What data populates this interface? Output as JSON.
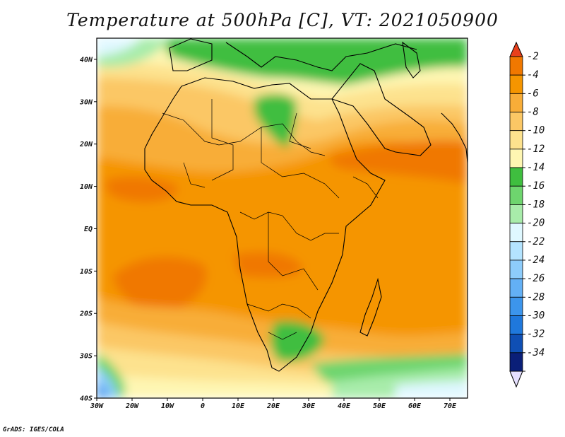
{
  "title": "Temperature at 500hPa [C], VT: 2021050900",
  "credit": "GrADS: IGES/COLA",
  "map": {
    "lon_range": [
      -30,
      75
    ],
    "lat_range": [
      -40,
      45
    ],
    "lat_ticks": [
      {
        "value": 40,
        "label": "40N"
      },
      {
        "value": 30,
        "label": "30N"
      },
      {
        "value": 20,
        "label": "20N"
      },
      {
        "value": 10,
        "label": "10N"
      },
      {
        "value": 0,
        "label": "EQ"
      },
      {
        "value": -10,
        "label": "10S"
      },
      {
        "value": -20,
        "label": "20S"
      },
      {
        "value": -30,
        "label": "30S"
      },
      {
        "value": -40,
        "label": "40S"
      }
    ],
    "lon_ticks": [
      {
        "value": -30,
        "label": "30W"
      },
      {
        "value": -20,
        "label": "20W"
      },
      {
        "value": -10,
        "label": "10W"
      },
      {
        "value": 0,
        "label": "0"
      },
      {
        "value": 10,
        "label": "10E"
      },
      {
        "value": 20,
        "label": "20E"
      },
      {
        "value": 30,
        "label": "30E"
      },
      {
        "value": 40,
        "label": "40E"
      },
      {
        "value": 50,
        "label": "50E"
      },
      {
        "value": 60,
        "label": "60E"
      },
      {
        "value": 70,
        "label": "70E"
      }
    ]
  },
  "colorbar": {
    "levels": [
      {
        "label": "-2",
        "color": "#f07800"
      },
      {
        "label": "-4",
        "color": "#f59500"
      },
      {
        "label": "-6",
        "color": "#f8ad38"
      },
      {
        "label": "-8",
        "color": "#fbc765"
      },
      {
        "label": "-10",
        "color": "#fde28e"
      },
      {
        "label": "-12",
        "color": "#fef6b2"
      },
      {
        "label": "-14",
        "color": "#3fbe3f"
      },
      {
        "label": "-16",
        "color": "#6ed56e"
      },
      {
        "label": "-18",
        "color": "#a8ecaa"
      },
      {
        "label": "-20",
        "color": "#dff8ff"
      },
      {
        "label": "-22",
        "color": "#b4e4ff"
      },
      {
        "label": "-24",
        "color": "#8dccfb"
      },
      {
        "label": "-26",
        "color": "#63b0f5"
      },
      {
        "label": "-28",
        "color": "#3c95ec"
      },
      {
        "label": "-30",
        "color": "#1f78dc"
      },
      {
        "label": "-32",
        "color": "#0f4fb4"
      },
      {
        "label": "-34",
        "color": "#0a1f78"
      }
    ],
    "top_color": "#e8401c",
    "bottom_color": "#e6e0ff"
  }
}
